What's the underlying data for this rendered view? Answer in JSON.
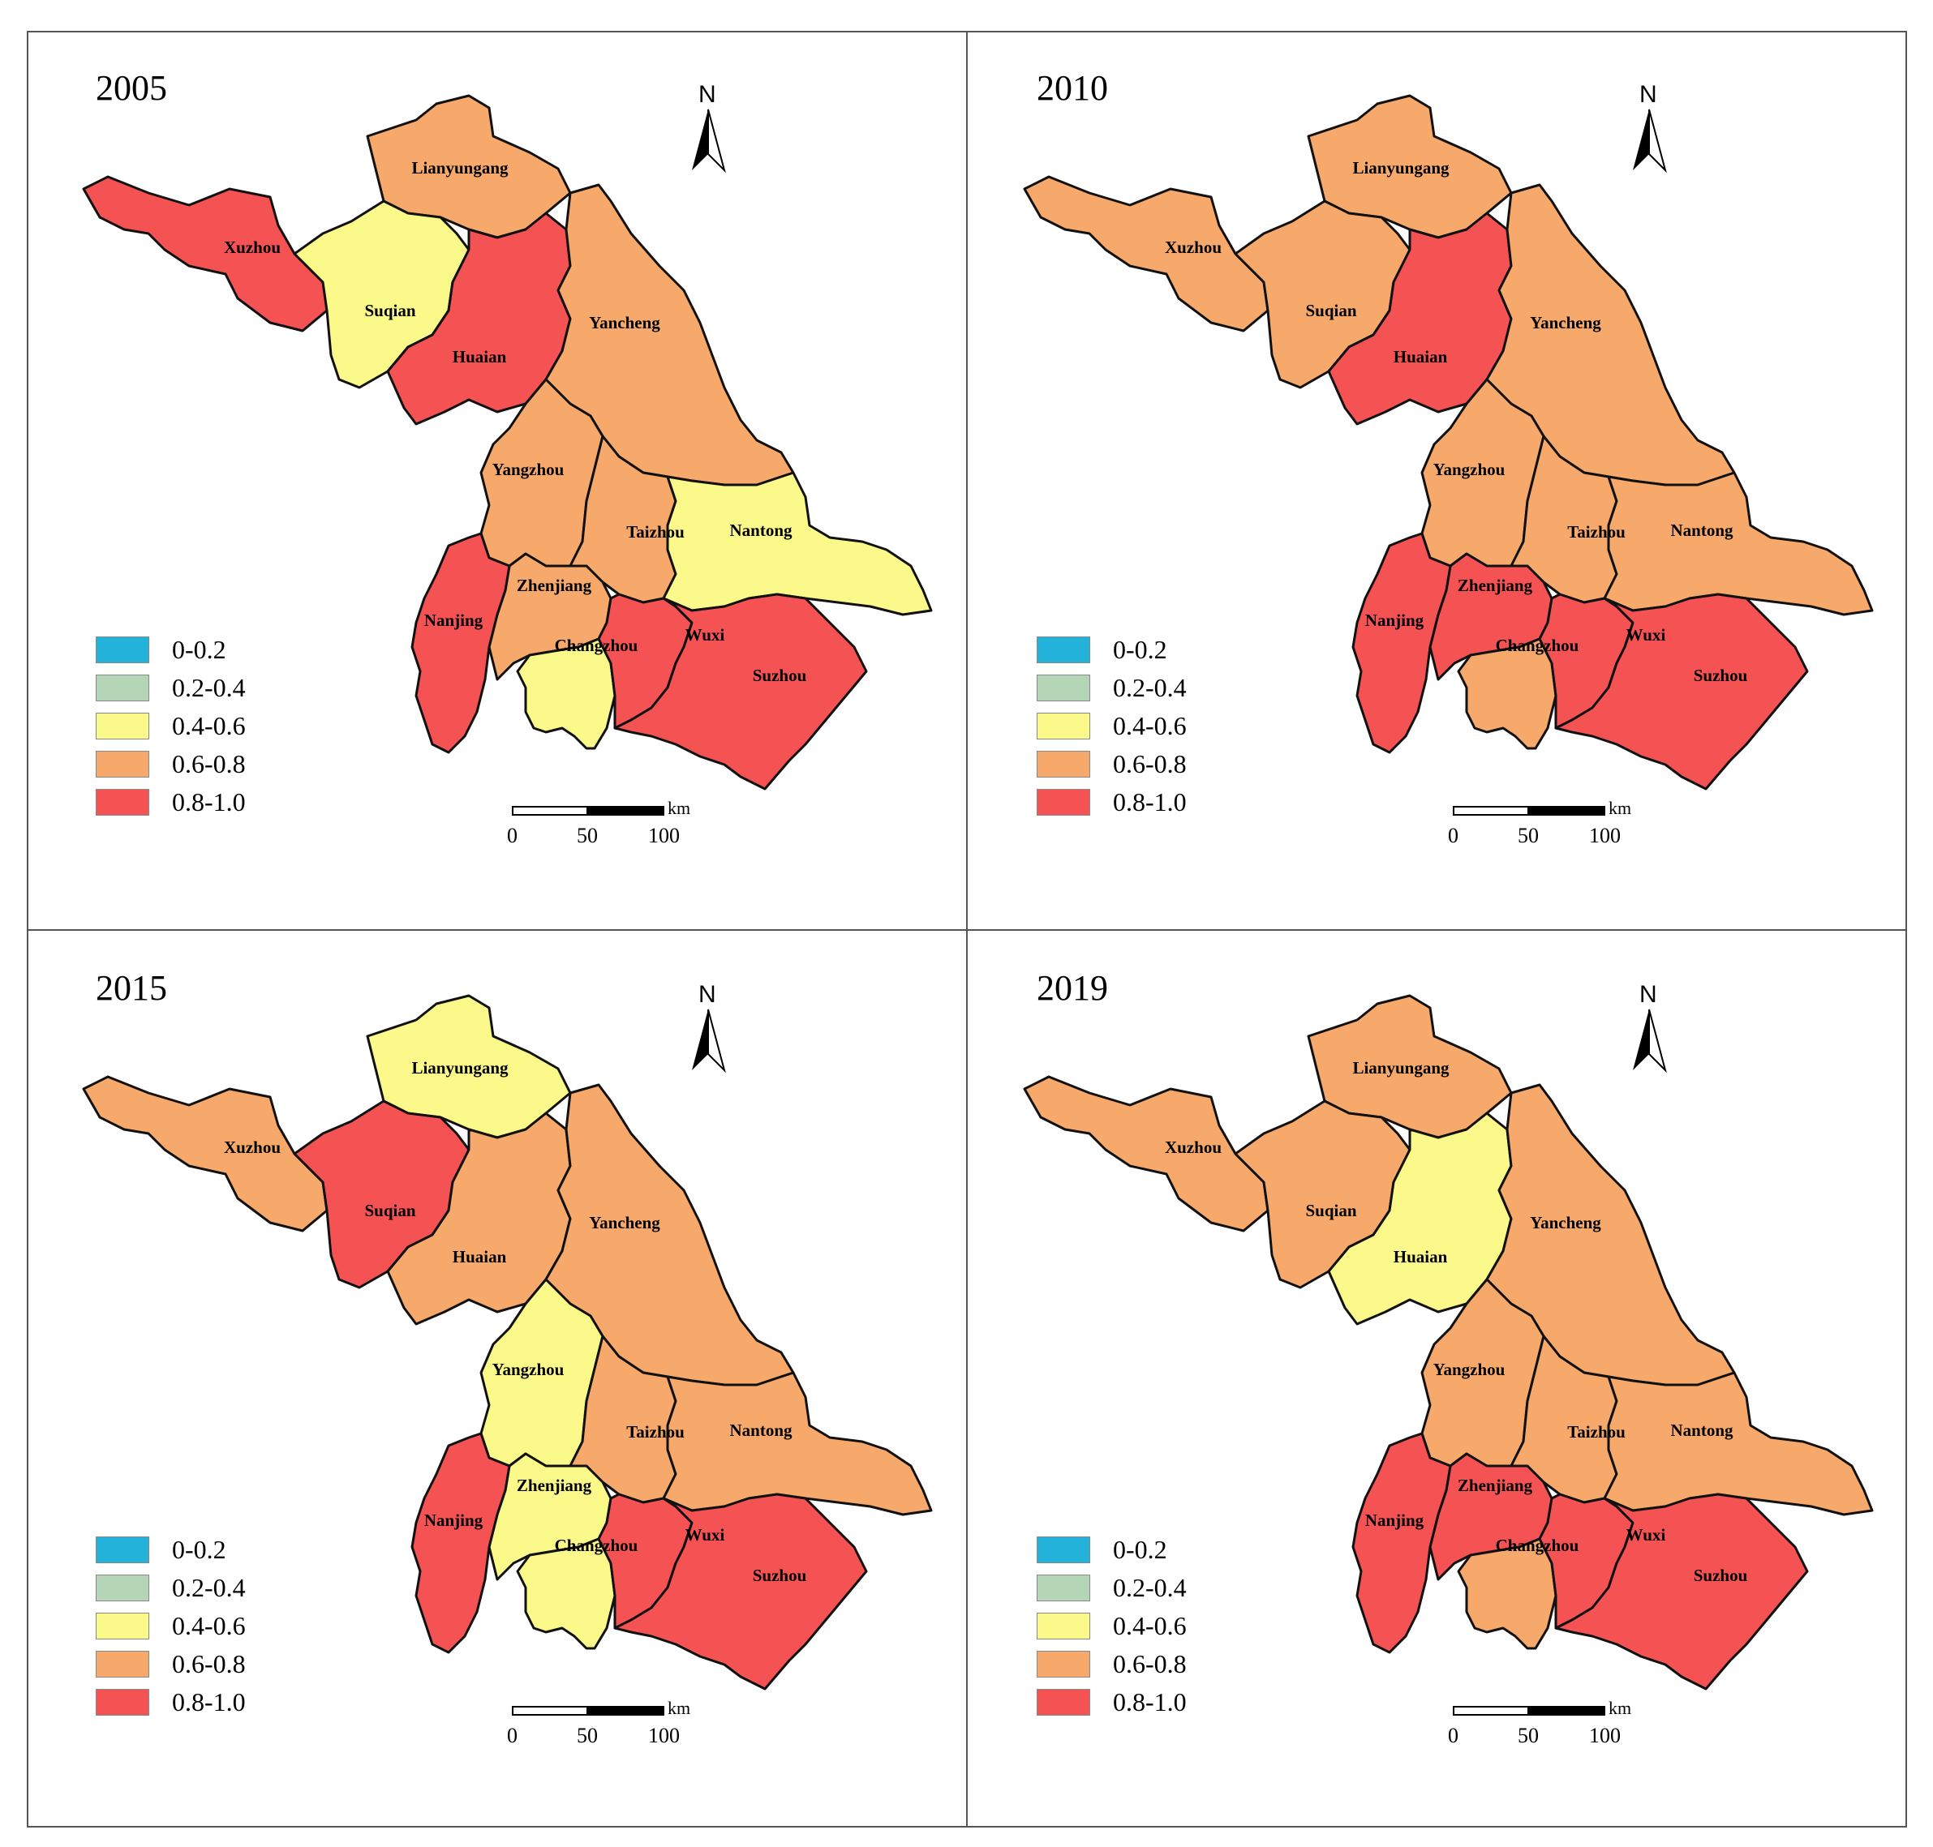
{
  "colors": {
    "c1": "#22b2da",
    "c2": "#b4d6b6",
    "c3": "#fbf98a",
    "c4": "#f6a96a",
    "c5": "#f55254"
  },
  "legend": [
    {
      "label": "0-0.2",
      "color": "#22b2da"
    },
    {
      "label": "0.2-0.4",
      "color": "#b4d6b6"
    },
    {
      "label": "0.4-0.6",
      "color": "#fbf98a"
    },
    {
      "label": "0.6-0.8",
      "color": "#f6a96a"
    },
    {
      "label": "0.8-1.0",
      "color": "#f55254"
    }
  ],
  "north_label": "N",
  "scale": {
    "unit": "km",
    "ticks": [
      "0",
      "50",
      "100"
    ]
  },
  "cities": [
    "Lianyungang",
    "Xuzhou",
    "Suqian",
    "Huaian",
    "Yancheng",
    "Yangzhou",
    "Taizhou",
    "Nantong",
    "Zhenjiang",
    "Nanjing",
    "Changzhou",
    "Wuxi",
    "Suzhou"
  ],
  "panels": [
    {
      "year": "2005",
      "classes": {
        "Lianyungang": 4,
        "Xuzhou": 5,
        "Suqian": 3,
        "Huaian": 5,
        "Yancheng": 4,
        "Yangzhou": 4,
        "Taizhou": 4,
        "Nantong": 3,
        "Zhenjiang": 4,
        "Nanjing": 5,
        "Changzhou": 3,
        "Wuxi": 5,
        "Suzhou": 5
      }
    },
    {
      "year": "2010",
      "classes": {
        "Lianyungang": 4,
        "Xuzhou": 4,
        "Suqian": 4,
        "Huaian": 5,
        "Yancheng": 4,
        "Yangzhou": 4,
        "Taizhou": 4,
        "Nantong": 4,
        "Zhenjiang": 5,
        "Nanjing": 5,
        "Changzhou": 4,
        "Wuxi": 5,
        "Suzhou": 5
      }
    },
    {
      "year": "2015",
      "classes": {
        "Lianyungang": 3,
        "Xuzhou": 4,
        "Suqian": 5,
        "Huaian": 4,
        "Yancheng": 4,
        "Yangzhou": 3,
        "Taizhou": 4,
        "Nantong": 4,
        "Zhenjiang": 3,
        "Nanjing": 5,
        "Changzhou": 3,
        "Wuxi": 5,
        "Suzhou": 5
      }
    },
    {
      "year": "2019",
      "classes": {
        "Lianyungang": 4,
        "Xuzhou": 4,
        "Suqian": 4,
        "Huaian": 3,
        "Yancheng": 4,
        "Yangzhou": 4,
        "Taizhou": 4,
        "Nantong": 4,
        "Zhenjiang": 5,
        "Nanjing": 5,
        "Changzhou": 4,
        "Wuxi": 5,
        "Suzhou": 5
      }
    }
  ]
}
